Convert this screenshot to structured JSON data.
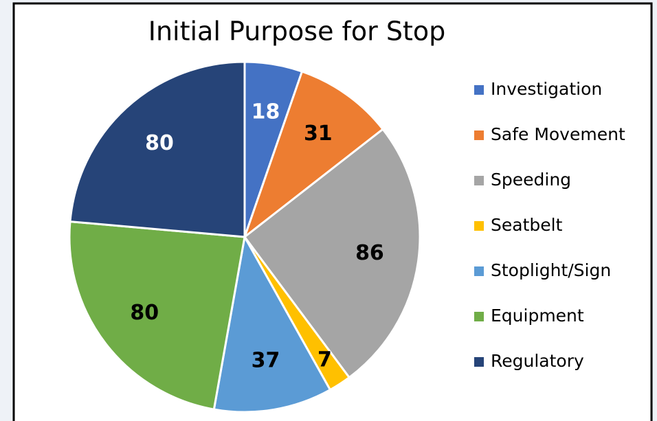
{
  "chart_data": {
    "type": "pie",
    "title": "Initial Purpose for Stop",
    "categories": [
      "Investigation",
      "Safe Movement",
      "Speeding",
      "Seatbelt",
      "Stoplight/Sign",
      "Equipment",
      "Regulatory"
    ],
    "values": [
      18,
      31,
      86,
      7,
      37,
      80,
      80
    ],
    "colors": [
      "#4472c4",
      "#ed7d31",
      "#a5a5a5",
      "#ffc000",
      "#5b9bd5",
      "#70ad47",
      "#264478"
    ],
    "legend": "right"
  }
}
